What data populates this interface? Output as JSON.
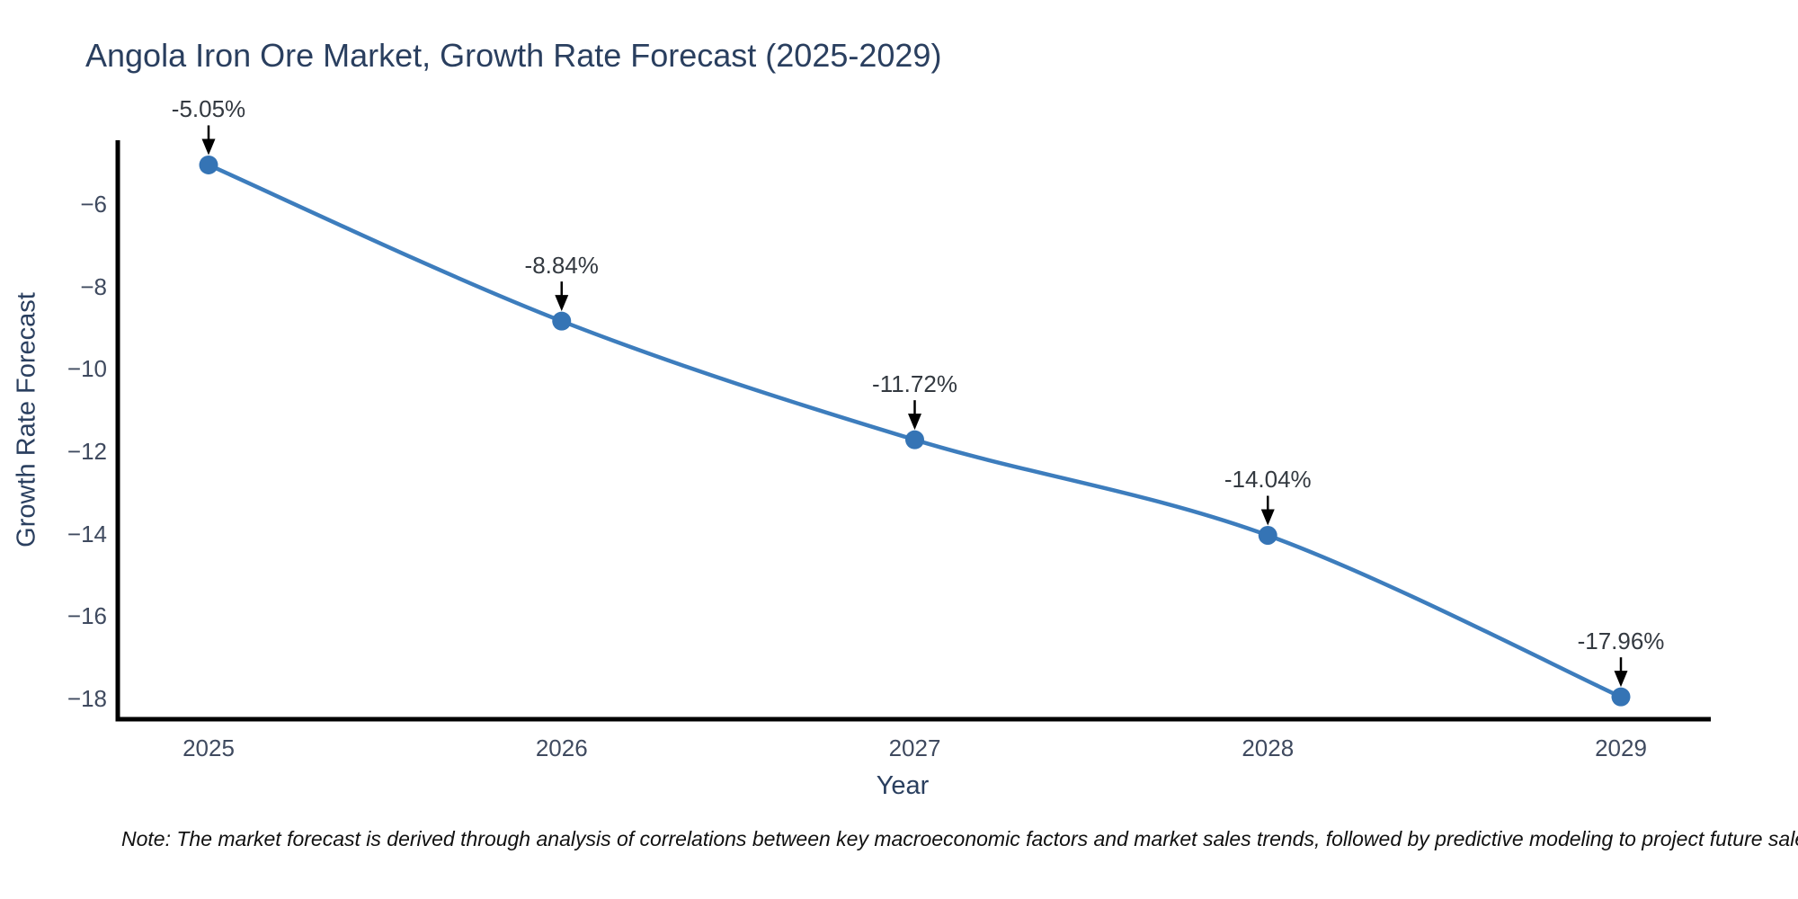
{
  "chart_data": {
    "type": "line",
    "line_shape": "spline",
    "title": "Angola Iron Ore Market, Growth Rate Forecast (2025-2029)",
    "xlabel": "Year",
    "ylabel": "Growth Rate Forecast",
    "x": [
      2025,
      2026,
      2027,
      2028,
      2029
    ],
    "x_tick_labels": [
      "2025",
      "2026",
      "2027",
      "2028",
      "2029"
    ],
    "series": [
      {
        "name": "Growth Rate Forecast",
        "values": [
          -5.05,
          -8.84,
          -11.72,
          -14.04,
          -17.96
        ]
      }
    ],
    "values": [
      -5.05,
      -8.84,
      -11.72,
      -14.04,
      -17.96
    ],
    "point_labels": [
      "-5.05%",
      "-8.84%",
      "-11.72%",
      "-14.04%",
      "-17.96%"
    ],
    "y_ticks": [
      -6,
      -8,
      -10,
      -12,
      -14,
      -16,
      -18
    ],
    "y_tick_labels": [
      "−6",
      "−8",
      "−10",
      "−12",
      "−14",
      "−16",
      "−18"
    ],
    "ylim": [
      -18.5,
      -4.4
    ],
    "grid": false,
    "legend": "none",
    "markers": true,
    "annotations_arrow": "down-black",
    "colors": {
      "line": "#3d7dbd",
      "marker": "#3574b5",
      "axis": "#000000",
      "arrow": "#000000",
      "title_text": "#2a3f5f",
      "tick_text": "#3f4a5f",
      "annotation_text": "#333940",
      "background": "#ffffff"
    }
  },
  "footnote": {
    "text": "Note: The market forecast is derived through analysis of correlations between key macroeconomic factors and market sales trends, followed by predictive modeling to project future sales."
  }
}
